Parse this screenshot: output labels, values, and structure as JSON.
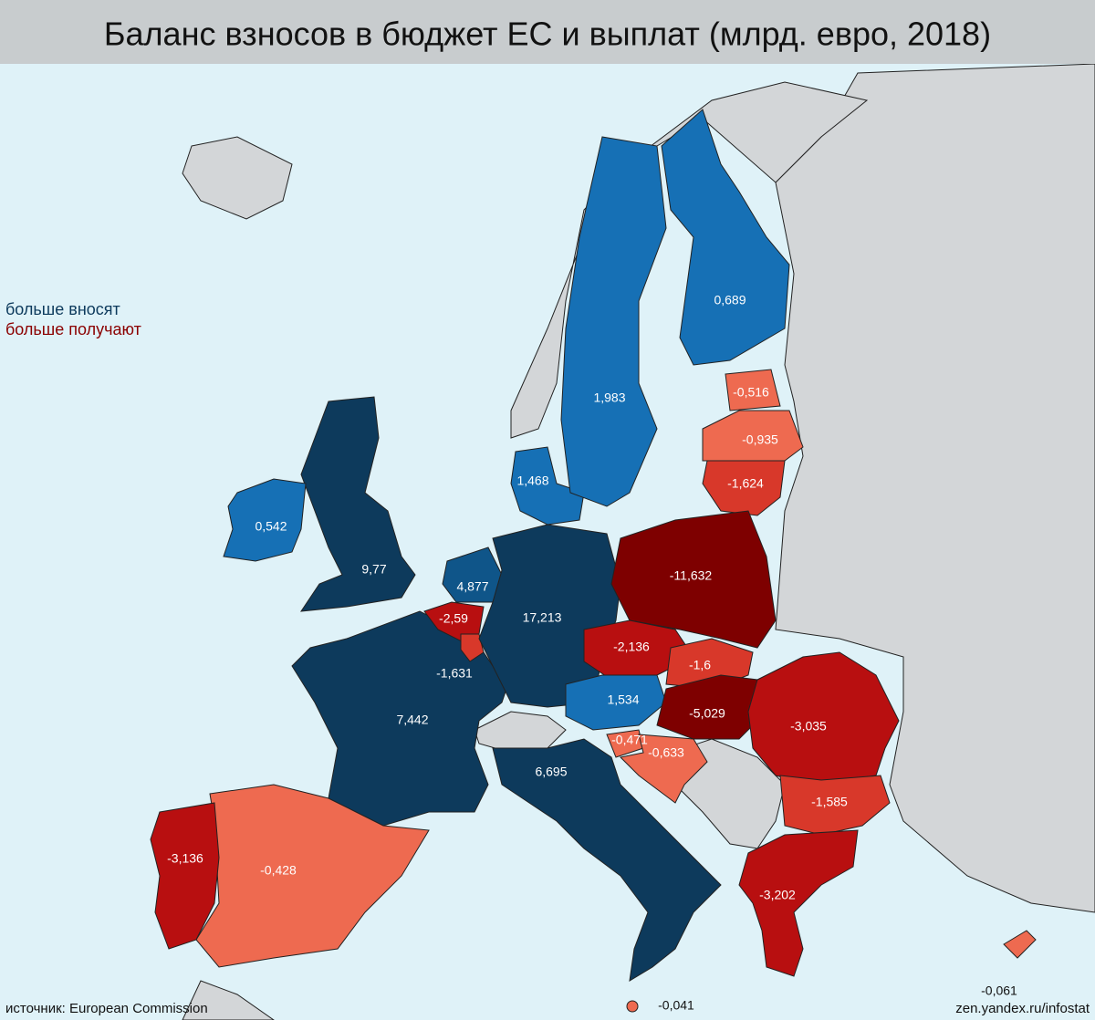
{
  "header": {
    "title": "Баланс взносов в бюджет ЕС и выплат (млрд. евро, 2018)"
  },
  "legend": {
    "contributors": "больше вносят",
    "recipients": "больше получают"
  },
  "regions": [
    {
      "value": 9.77,
      "label": "9,77"
    },
    {
      "value": 0.542,
      "label": "0,542"
    },
    {
      "value": 7.442,
      "label": "7,442"
    },
    {
      "value": -0.428,
      "label": "-0,428"
    },
    {
      "value": -3.136,
      "label": "-3,136"
    },
    {
      "value": -2.59,
      "label": "-2,59"
    },
    {
      "value": -1.631,
      "label": "-1,631"
    },
    {
      "value": 4.877,
      "label": "4,877"
    },
    {
      "value": 17.213,
      "label": "17,213"
    },
    {
      "value": 1.468,
      "label": "1,468"
    },
    {
      "value": 1.983,
      "label": "1,983"
    },
    {
      "value": 0.689,
      "label": "0,689"
    },
    {
      "value": -0.516,
      "label": "-0,516"
    },
    {
      "value": -0.935,
      "label": "-0,935"
    },
    {
      "value": -1.624,
      "label": "-1,624"
    },
    {
      "value": -11.632,
      "label": "-11,632"
    },
    {
      "value": -2.136,
      "label": "-2,136"
    },
    {
      "value": -1.6,
      "label": "-1,6"
    },
    {
      "value": 1.534,
      "label": "1,534"
    },
    {
      "value": -5.029,
      "label": "-5,029"
    },
    {
      "value": -3.035,
      "label": "-3,035"
    },
    {
      "value": -1.585,
      "label": "-1,585"
    },
    {
      "value": -3.202,
      "label": "-3,202"
    },
    {
      "value": -0.471,
      "label": "-0,471"
    },
    {
      "value": -0.633,
      "label": "-0,633"
    },
    {
      "value": 6.695,
      "label": "6,695"
    },
    {
      "value": -0.041,
      "label": "-0,041"
    },
    {
      "value": -0.061,
      "label": "-0,061"
    }
  ],
  "footer": {
    "source": "источник: European Commission",
    "credit": "zen.yandex.ru/infostat"
  }
}
